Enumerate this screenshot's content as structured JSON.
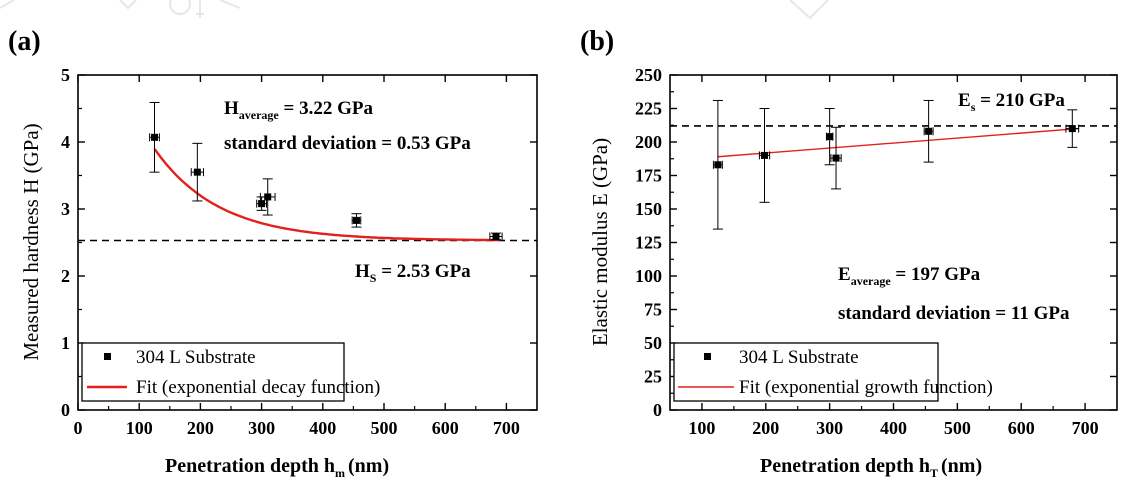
{
  "chart_data": [
    {
      "type": "scatter",
      "panel_label": "(a)",
      "xlabel_main": "Penetration depth h",
      "xlabel_sub": "m",
      "xlabel_unit": "(nm)",
      "ylabel": "Measured hardness H (GPa)",
      "xlim": [
        0,
        750
      ],
      "ylim": [
        0,
        5
      ],
      "xticks": [
        0,
        100,
        200,
        300,
        400,
        500,
        600,
        700
      ],
      "yticks": [
        0,
        1,
        2,
        3,
        4,
        5
      ],
      "series": [
        {
          "name": "304 L Substrate",
          "marker": "square",
          "color": "#000000",
          "points": [
            {
              "x": 125,
              "y": 4.07,
              "yerr": 0.52,
              "xerr": 8
            },
            {
              "x": 195,
              "y": 3.55,
              "yerr": 0.43,
              "xerr": 10
            },
            {
              "x": 300,
              "y": 3.08,
              "yerr": 0.1,
              "xerr": 8
            },
            {
              "x": 310,
              "y": 3.18,
              "yerr": 0.27,
              "xerr": 12
            },
            {
              "x": 455,
              "y": 2.83,
              "yerr": 0.1,
              "xerr": 7
            },
            {
              "x": 683,
              "y": 2.59,
              "yerr": 0.05,
              "xerr": 10
            }
          ]
        },
        {
          "name": "Fit  (exponential decay function)",
          "kind": "fit",
          "color": "#e3211c",
          "fit": {
            "y0": 2.53,
            "A": 4.5,
            "t": 105
          },
          "xrange": [
            125,
            690
          ]
        }
      ],
      "hline": {
        "y": 2.53,
        "style": "dashed"
      },
      "annotations": {
        "avg_main": "H",
        "avg_sub": "average",
        "avg_value": " = 3.22 GPa",
        "stdev": "standard deviation = 0.53 GPa",
        "hs_main": "H",
        "hs_sub": "S",
        "hs_value": " = 2.53 GPa"
      },
      "legend_position": "bottom-left"
    },
    {
      "type": "scatter",
      "panel_label": "(b)",
      "xlabel_main": "Penetration depth h",
      "xlabel_sub": "T",
      "xlabel_unit": "(nm)",
      "ylabel": "Elastic modulus E (GPa)",
      "xlim": [
        50,
        750
      ],
      "ylim": [
        0,
        250
      ],
      "xticks": [
        100,
        200,
        300,
        400,
        500,
        600,
        700
      ],
      "yticks": [
        0,
        25,
        50,
        75,
        100,
        125,
        150,
        175,
        200,
        225,
        250
      ],
      "series": [
        {
          "name": "304 L Substrate",
          "marker": "square",
          "color": "#000000",
          "points": [
            {
              "x": 125,
              "y": 183,
              "yerr": 48,
              "xerr": 7
            },
            {
              "x": 198,
              "y": 190,
              "yerr": 35,
              "xerr": 8
            },
            {
              "x": 300,
              "y": 204,
              "yerr": 21,
              "xerr": 5
            },
            {
              "x": 310,
              "y": 188,
              "yerr": 23,
              "xerr": 8
            },
            {
              "x": 455,
              "y": 208,
              "yerr": 23,
              "xerr": 7
            },
            {
              "x": 680,
              "y": 210,
              "yerr": 14,
              "xerr": 10
            }
          ]
        },
        {
          "name": "Fit (exponential growth function)",
          "kind": "fit",
          "color": "#e3211c",
          "line": {
            "x0": 125,
            "y0": 189,
            "x1": 690,
            "y1": 210
          }
        }
      ],
      "hline": {
        "y": 212,
        "style": "dashed"
      },
      "annotations": {
        "es_main": "E",
        "es_sub": "s",
        "es_value": " = 210 GPa",
        "avg_main": "E",
        "avg_sub": "average",
        "avg_value": " = 197 GPa",
        "stdev": "standard deviation = 11 GPa"
      },
      "legend_position": "bottom-left"
    }
  ]
}
